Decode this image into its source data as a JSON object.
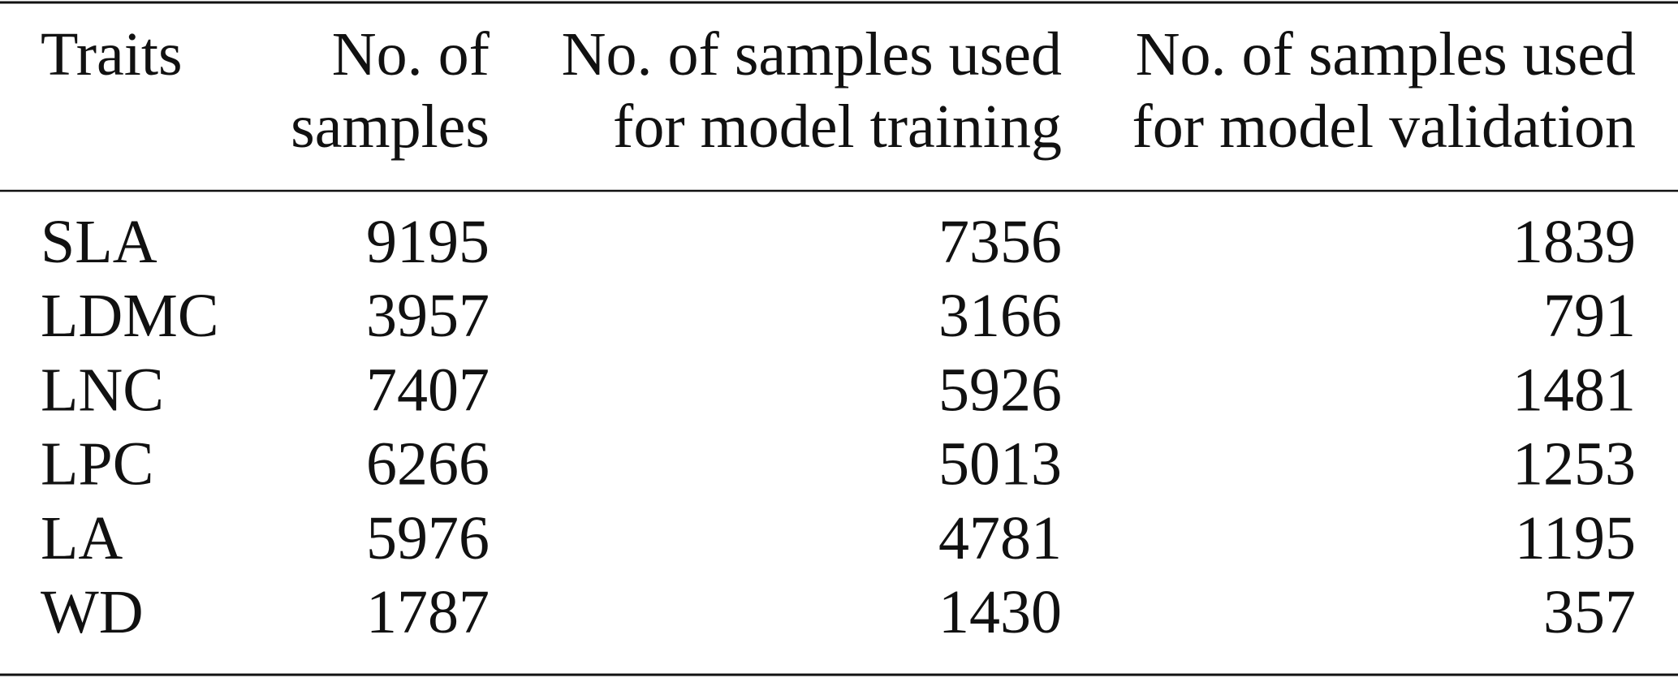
{
  "table": {
    "header": [
      [
        "Traits"
      ],
      [
        "No. of",
        "samples"
      ],
      [
        "No. of samples used",
        "for model training"
      ],
      [
        "No. of samples used",
        "for model validation"
      ]
    ],
    "rows": [
      [
        "SLA",
        9195,
        7356,
        1839
      ],
      [
        "LDMC",
        3957,
        3166,
        791
      ],
      [
        "LNC",
        7407,
        5926,
        1481
      ],
      [
        "LPC",
        6266,
        5013,
        1253
      ],
      [
        "LA",
        5976,
        4781,
        1195
      ],
      [
        "WD",
        1787,
        1430,
        357
      ]
    ]
  }
}
